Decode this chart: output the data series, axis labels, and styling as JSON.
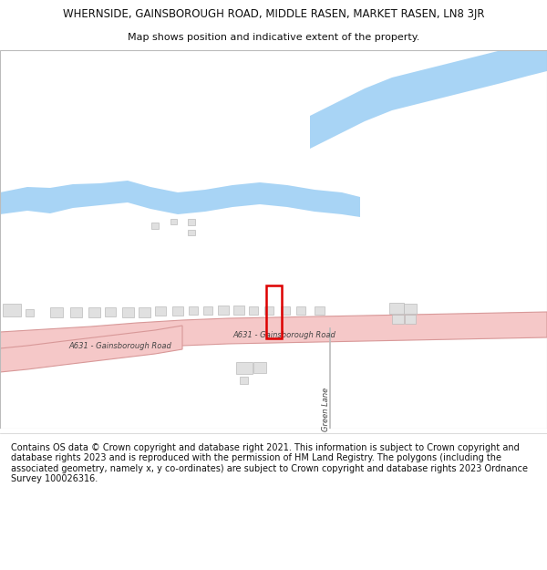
{
  "title_line1": "WHERNSIDE, GAINSBOROUGH ROAD, MIDDLE RASEN, MARKET RASEN, LN8 3JR",
  "title_line2": "Map shows position and indicative extent of the property.",
  "footer_text": "Contains OS data © Crown copyright and database right 2021. This information is subject to Crown copyright and database rights 2023 and is reproduced with the permission of HM Land Registry. The polygons (including the associated geometry, namely x, y co-ordinates) are subject to Crown copyright and database rights 2023 Ordnance Survey 100026316.",
  "background_color": "#ffffff",
  "river_color": "#a8d4f5",
  "road_fill_color": "#f5c8c8",
  "road_edge_color": "#d89898",
  "building_fill": "#e0e0e0",
  "building_edge": "#bbbbbb",
  "plot_color": "#dd0000",
  "lane_color": "#bbbbbb",
  "text_color": "#333333",
  "road_label_color": "#444444",
  "title_fontsize": 8.5,
  "subtitle_fontsize": 8,
  "footer_fontsize": 7,
  "road_label_fontsize": 6,
  "lane_label_fontsize": 6
}
